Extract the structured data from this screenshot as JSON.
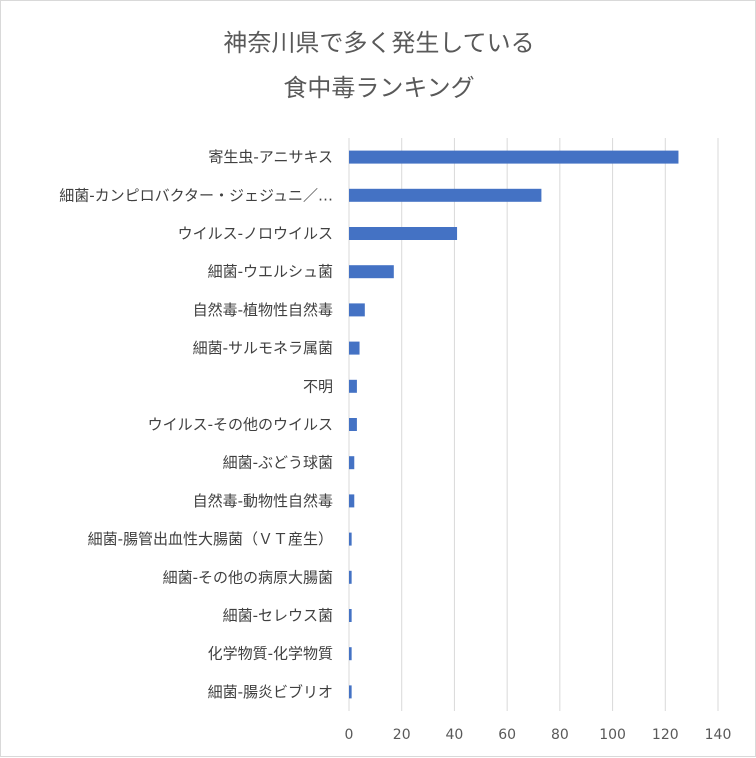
{
  "chart_data": {
    "type": "bar",
    "orientation": "horizontal",
    "title": [
      "神奈川県で多く発生している",
      "食中毒ランキング"
    ],
    "categories": [
      "寄生虫-アニサキス",
      "細菌-カンピロバクター・ジェジュニ／…",
      "ウイルス-ノロウイルス",
      "細菌-ウエルシュ菌",
      "自然毒-植物性自然毒",
      "細菌-サルモネラ属菌",
      "不明",
      "ウイルス-その他のウイルス",
      "細菌-ぶどう球菌",
      "自然毒-動物性自然毒",
      "細菌-腸管出血性大腸菌（ＶＴ産生）",
      "細菌-その他の病原大腸菌",
      "細菌-セレウス菌",
      "化学物質-化学物質",
      "細菌-腸炎ビブリオ"
    ],
    "values": [
      125,
      73,
      41,
      17,
      6,
      4,
      3,
      3,
      2,
      2,
      1,
      1,
      1,
      1,
      1
    ],
    "xlim": [
      0,
      140
    ],
    "xticks": [
      "0",
      "20",
      "40",
      "60",
      "80",
      "100",
      "120",
      "140"
    ],
    "grid": true,
    "legend": "none",
    "bar_color": "#4472c4"
  }
}
